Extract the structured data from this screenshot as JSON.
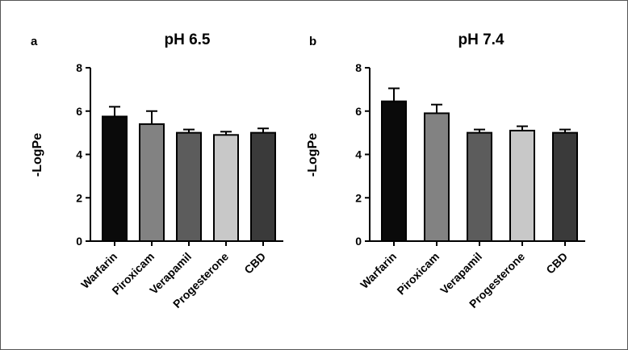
{
  "chart_data": [
    {
      "type": "bar",
      "panel_label": "a",
      "title": "pH 6.5",
      "xlabel": "",
      "ylabel": "-LogPe",
      "ylim": [
        0,
        8
      ],
      "yticks": [
        "0",
        "2",
        "4",
        "6",
        "8"
      ],
      "categories": [
        "Warfarin",
        "Piroxicam",
        "Verapamil",
        "Progesterone",
        "CBD"
      ],
      "values": [
        5.75,
        5.4,
        5.0,
        4.9,
        5.0
      ],
      "errors": [
        0.45,
        0.6,
        0.15,
        0.15,
        0.2
      ],
      "bar_colors": [
        "#0a0a0a",
        "#828282",
        "#5c5c5c",
        "#c8c8c8",
        "#3a3a3a"
      ]
    },
    {
      "type": "bar",
      "panel_label": "b",
      "title": "pH 7.4",
      "xlabel": "",
      "ylabel": "-LogPe",
      "ylim": [
        0,
        8
      ],
      "yticks": [
        "0",
        "2",
        "4",
        "6",
        "8"
      ],
      "categories": [
        "Warfarin",
        "Piroxicam",
        "Verapamil",
        "Progesterone",
        "CBD"
      ],
      "values": [
        6.45,
        5.9,
        5.0,
        5.1,
        5.0
      ],
      "errors": [
        0.6,
        0.4,
        0.15,
        0.2,
        0.15
      ],
      "bar_colors": [
        "#0a0a0a",
        "#828282",
        "#5c5c5c",
        "#c8c8c8",
        "#3a3a3a"
      ]
    }
  ]
}
